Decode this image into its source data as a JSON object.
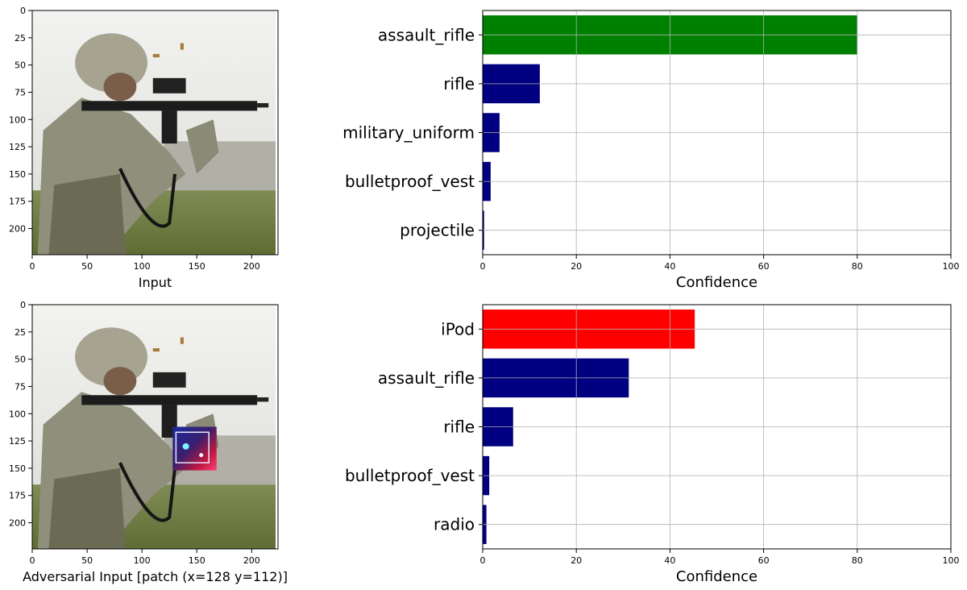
{
  "colors": {
    "top_bar": "#008000",
    "mis_bar": "#ff0000",
    "other_bar": "#000080",
    "grid": "#b0b0b0",
    "axis": "#000000"
  },
  "image_panels": [
    {
      "xlabel": "Input",
      "xticks": [
        0,
        50,
        100,
        150,
        200
      ],
      "yticks": [
        0,
        25,
        50,
        75,
        100,
        125,
        150,
        175,
        200
      ],
      "extent": [
        0,
        224
      ],
      "has_patch": false,
      "patch": null
    },
    {
      "xlabel": "Adversarial Input [patch (x=128 y=112)]",
      "xticks": [
        0,
        50,
        100,
        150,
        200
      ],
      "yticks": [
        0,
        25,
        50,
        75,
        100,
        125,
        150,
        175,
        200
      ],
      "extent": [
        0,
        224
      ],
      "has_patch": true,
      "patch": {
        "x": 128,
        "y": 112,
        "w": 40,
        "h": 40
      }
    }
  ],
  "chart_data": [
    {
      "type": "bar",
      "orientation": "horizontal",
      "categories": [
        "assault_rifle",
        "rifle",
        "military_uniform",
        "bulletproof_vest",
        "projectile"
      ],
      "values": [
        80,
        12.2,
        3.6,
        1.7,
        0.3
      ],
      "highlight": "green",
      "xlabel": "Confidence",
      "xlim": [
        0,
        100
      ],
      "xticks": [
        0,
        20,
        40,
        60,
        80,
        100
      ],
      "grid": true
    },
    {
      "type": "bar",
      "orientation": "horizontal",
      "categories": [
        "iPod",
        "assault_rifle",
        "rifle",
        "bulletproof_vest",
        "radio"
      ],
      "values": [
        45.3,
        31.2,
        6.5,
        1.4,
        0.8
      ],
      "highlight": "red",
      "xlabel": "Confidence",
      "xlim": [
        0,
        100
      ],
      "xticks": [
        0,
        20,
        40,
        60,
        80,
        100
      ],
      "grid": true
    }
  ]
}
